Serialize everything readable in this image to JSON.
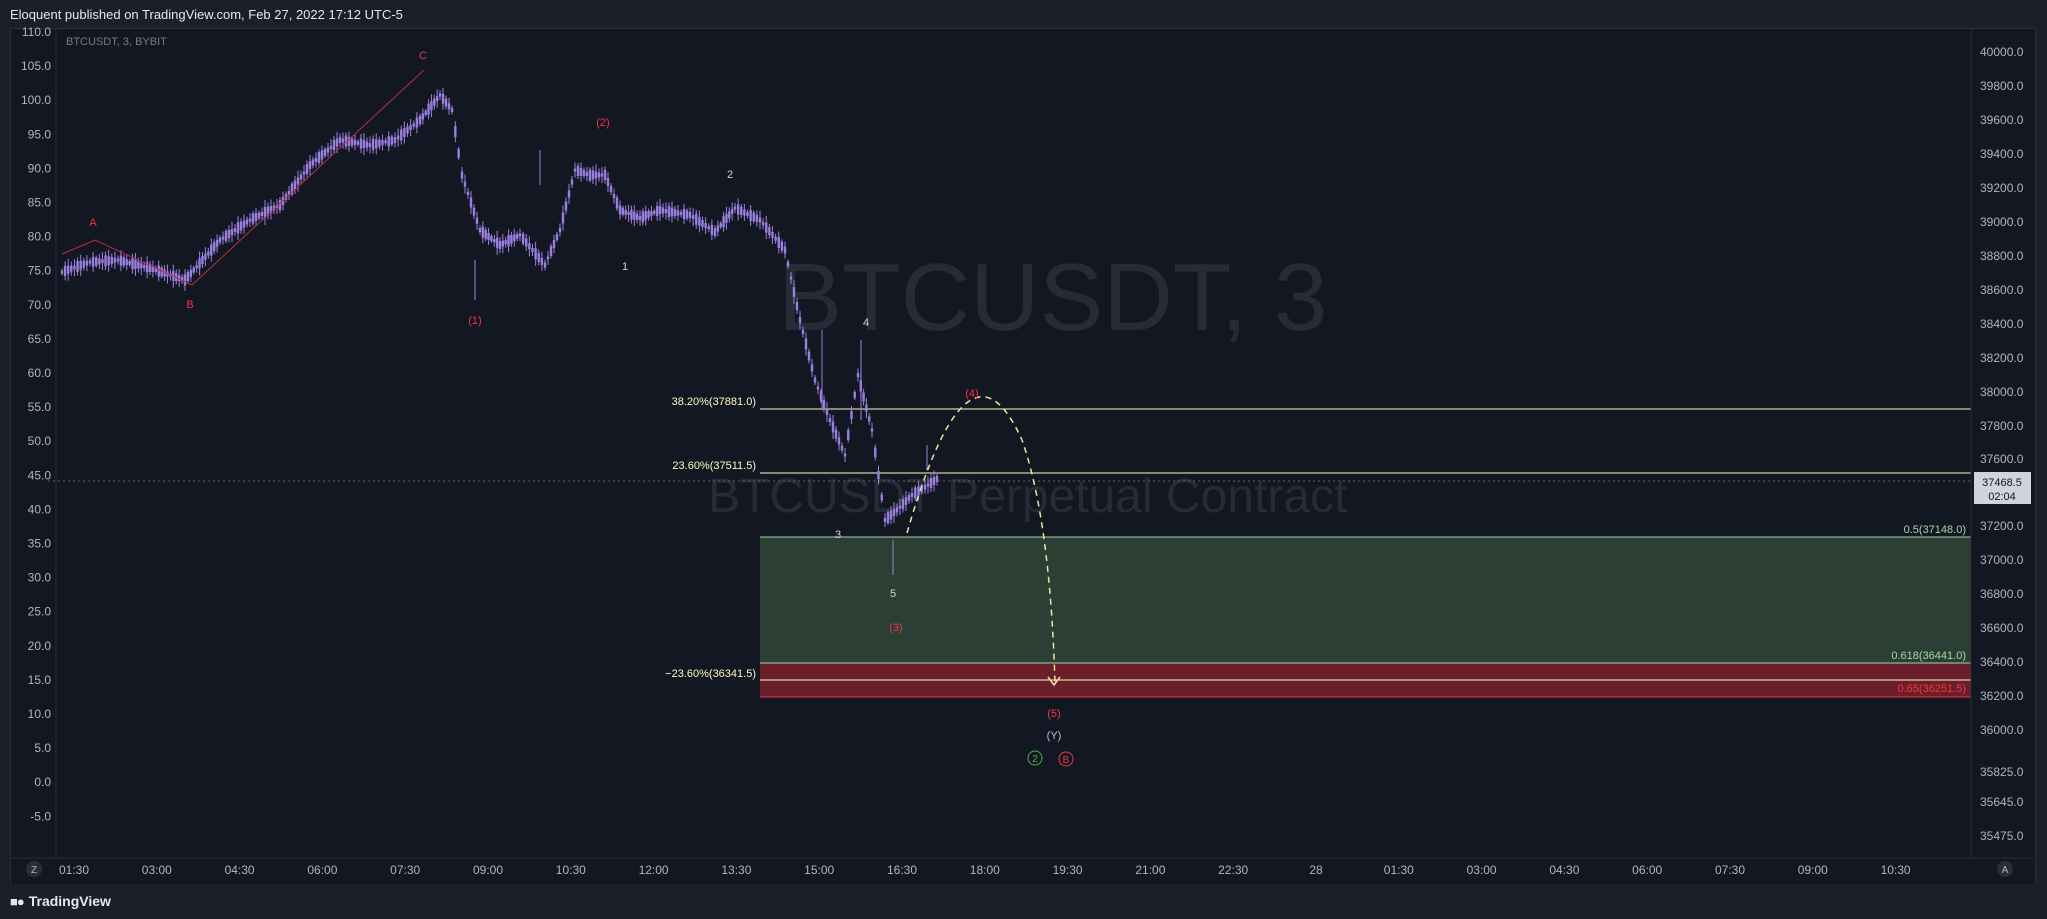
{
  "header": {
    "text": "Eloquent published on TradingView.com, Feb 27, 2022 17:12 UTC-5"
  },
  "footer": {
    "logo_text": "TradingView",
    "logo_icon": "tradingview-logo-icon"
  },
  "symbol_label": "BTCUSDT, 3, BYBIT",
  "watermark": {
    "line1": "BTCUSDT, 3",
    "line2": "BTCUSDT Perpetual Contract"
  },
  "colors": {
    "candle": "#9b7fe0",
    "wave_red": "#f23645",
    "wave_white": "#d1d4dc",
    "fib_line": "#fff9c4",
    "green_zone": "#2b3f35",
    "red_zone": "#6b1f2a",
    "green_text": "#a5d6a7",
    "path_line": "#e8e8a0"
  },
  "chart_data": {
    "type": "candlestick",
    "symbol": "BTCUSDT",
    "timeframe": "3",
    "exchange": "BYBIT",
    "left_axis": {
      "ticks": [
        "110.0",
        "105.0",
        "100.0",
        "95.0",
        "90.0",
        "85.0",
        "80.0",
        "75.0",
        "70.0",
        "65.0",
        "60.0",
        "55.0",
        "50.0",
        "45.0",
        "40.0",
        "35.0",
        "30.0",
        "25.0",
        "20.0",
        "15.0",
        "10.0",
        "5.0",
        "0.0",
        "-5.0"
      ]
    },
    "right_axis": {
      "ticks": [
        "40000.0",
        "39800.0",
        "39600.0",
        "39400.0",
        "39200.0",
        "39000.0",
        "38800.0",
        "38600.0",
        "38400.0",
        "38200.0",
        "38000.0",
        "37800.0",
        "37600.0",
        "37200.0",
        "37000.0",
        "36800.0",
        "36600.0",
        "36400.0",
        "36200.0",
        "36000.0",
        "35825.0",
        "35645.0",
        "35475.0"
      ],
      "last_price": "37468.5",
      "countdown": "02:04"
    },
    "x_axis": {
      "ticks": [
        "01:30",
        "03:00",
        "04:30",
        "06:00",
        "07:30",
        "09:00",
        "10:30",
        "12:00",
        "13:30",
        "15:00",
        "16:30",
        "18:00",
        "19:30",
        "21:00",
        "22:30",
        "28",
        "01:30",
        "03:00",
        "04:30",
        "06:00",
        "07:30",
        "09:00",
        "10:30"
      ]
    },
    "fib_levels": [
      {
        "label": "38.20%(37881.0)",
        "price": 37881.0
      },
      {
        "label": "23.60%(37511.5)",
        "price": 37511.5
      },
      {
        "label": "−23.60%(36341.5)",
        "price": 36341.5
      }
    ],
    "zones": [
      {
        "label": "0.5(37148.0)",
        "price": 37148.0,
        "color": "green"
      },
      {
        "label": "0.618(36441.0)",
        "price": 36441.0,
        "color": "green"
      },
      {
        "label": "0.65(36251.5)",
        "price": 36251.5,
        "color": "red"
      }
    ],
    "wave_labels": [
      {
        "text": "A",
        "color": "red"
      },
      {
        "text": "B",
        "color": "red"
      },
      {
        "text": "C",
        "color": "red"
      },
      {
        "text": "(1)",
        "color": "red"
      },
      {
        "text": "(2)",
        "color": "red"
      },
      {
        "text": "(3)",
        "color": "red"
      },
      {
        "text": "(4)",
        "color": "red"
      },
      {
        "text": "(5)",
        "color": "red"
      },
      {
        "text": "1",
        "color": "white"
      },
      {
        "text": "2",
        "color": "white"
      },
      {
        "text": "3",
        "color": "white"
      },
      {
        "text": "4",
        "color": "white"
      },
      {
        "text": "5",
        "color": "white"
      },
      {
        "text": "(Y)",
        "color": "white"
      },
      {
        "text": "2",
        "color": "green-circle"
      },
      {
        "text": "B",
        "color": "red-circle"
      }
    ],
    "scale_buttons": {
      "left": "Z",
      "right": "A"
    }
  }
}
